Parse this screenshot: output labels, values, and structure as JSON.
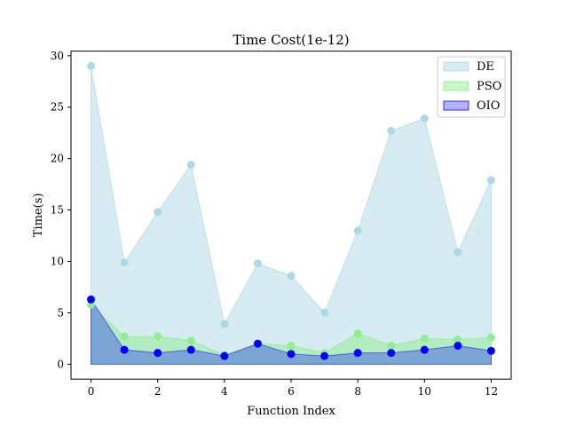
{
  "chart_data": {
    "type": "area",
    "title": "Time Cost(1e-12)",
    "xlabel": "Function Index",
    "ylabel": "Time(s)",
    "xlim": [
      -0.6,
      12.6
    ],
    "ylim": [
      -1.45,
      30.45
    ],
    "xticks": [
      0,
      2,
      4,
      6,
      8,
      10,
      12
    ],
    "yticks": [
      0,
      5,
      10,
      15,
      20,
      25,
      30
    ],
    "x": [
      0,
      1,
      2,
      3,
      4,
      5,
      6,
      7,
      8,
      9,
      10,
      11,
      12
    ],
    "legend_position": "upper right",
    "series": [
      {
        "name": "DE",
        "values": [
          29.0,
          9.9,
          14.8,
          19.4,
          3.9,
          9.8,
          8.6,
          5.0,
          13.0,
          22.7,
          23.9,
          10.9,
          17.9
        ],
        "fill": "#add8e6",
        "marker": "#add8e6"
      },
      {
        "name": "PSO",
        "values": [
          5.8,
          2.7,
          2.7,
          2.3,
          0.9,
          2.0,
          1.8,
          1.1,
          3.0,
          1.8,
          2.5,
          2.4,
          2.6
        ],
        "fill": "#90ee90",
        "marker": "#90ee90"
      },
      {
        "name": "OIO",
        "values": [
          6.3,
          1.4,
          1.1,
          1.4,
          0.8,
          2.0,
          1.0,
          0.8,
          1.1,
          1.1,
          1.4,
          1.8,
          1.3
        ],
        "fill": "#0000ff",
        "marker": "#0000ff"
      }
    ]
  }
}
